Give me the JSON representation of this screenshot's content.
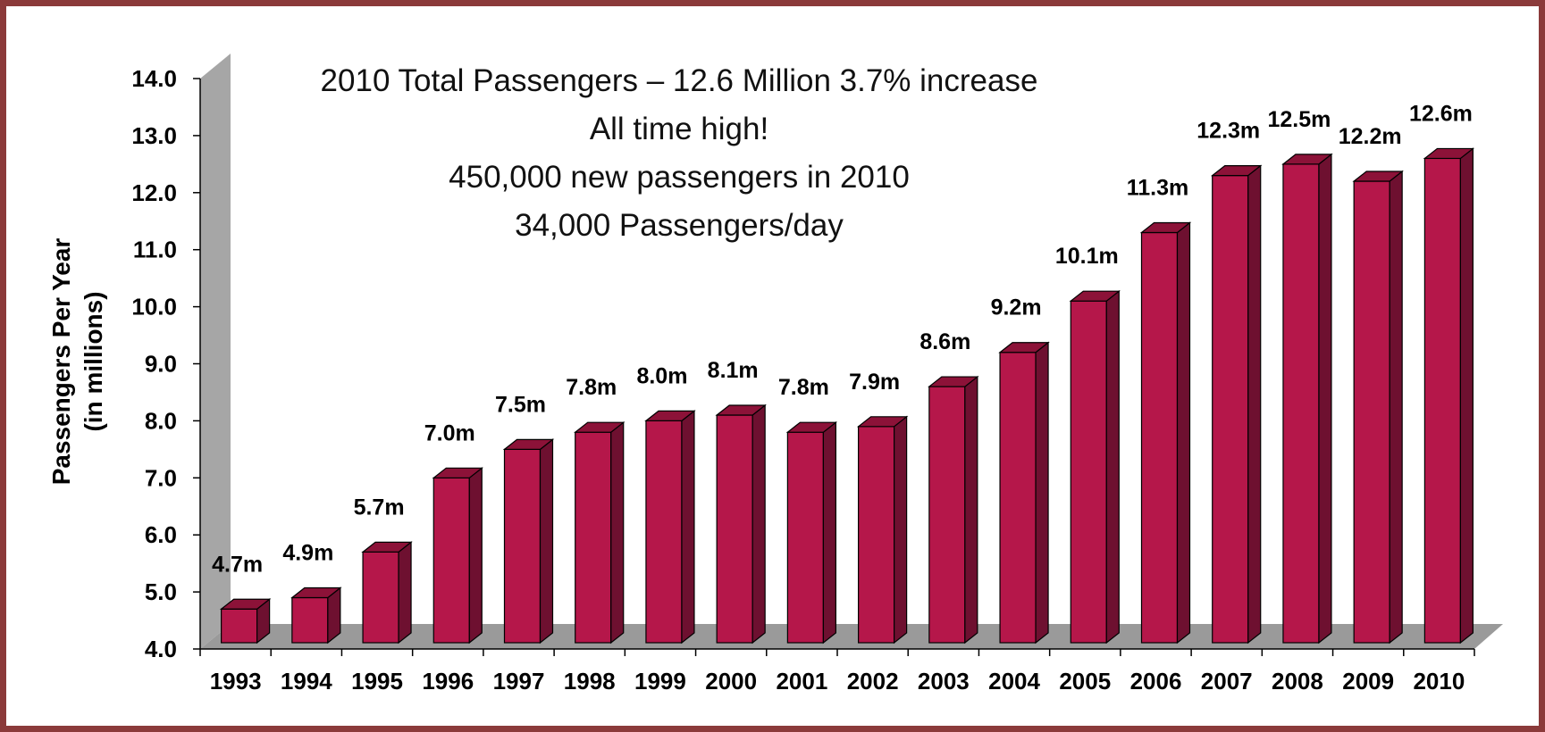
{
  "chart_data": {
    "type": "bar",
    "categories": [
      "1993",
      "1994",
      "1995",
      "1996",
      "1997",
      "1998",
      "1999",
      "2000",
      "2001",
      "2002",
      "2003",
      "2004",
      "2005",
      "2006",
      "2007",
      "2008",
      "2009",
      "2010"
    ],
    "values": [
      4.7,
      4.9,
      5.7,
      7.0,
      7.5,
      7.8,
      8.0,
      8.1,
      7.8,
      7.9,
      8.6,
      9.2,
      10.1,
      11.3,
      12.3,
      12.5,
      12.2,
      12.6
    ],
    "data_labels": [
      "4.7m",
      "4.9m",
      "5.7m",
      "7.0m",
      "7.5m",
      "7.8m",
      "8.0m",
      "8.1m",
      "7.8m",
      "7.9m",
      "8.6m",
      "9.2m",
      "10.1m",
      "11.3m",
      "12.3m",
      "12.5m",
      "12.2m",
      "12.6m"
    ],
    "ylabel": [
      "Passengers Per Year",
      "(in millions)"
    ],
    "xlabel": "",
    "ylim": [
      4.0,
      14.0
    ],
    "yticks": [
      "4.0",
      "5.0",
      "6.0",
      "7.0",
      "8.0",
      "9.0",
      "10.0",
      "11.0",
      "12.0",
      "13.0",
      "14.0"
    ],
    "annotations": [
      "2010 Total Passengers – 12.6 Million 3.7% increase",
      "All time high!",
      "450,000 new passengers in 2010",
      "34,000 Passengers/day"
    ],
    "grid": false,
    "legend": "none",
    "bar_color": "#b5174a",
    "bar_side_color": "#6e1030",
    "bar_top_color": "#8c1238",
    "wall_color": "#a6a6a6",
    "floor_color": "#9a9a9a",
    "border_color": "#8b3a3a"
  }
}
